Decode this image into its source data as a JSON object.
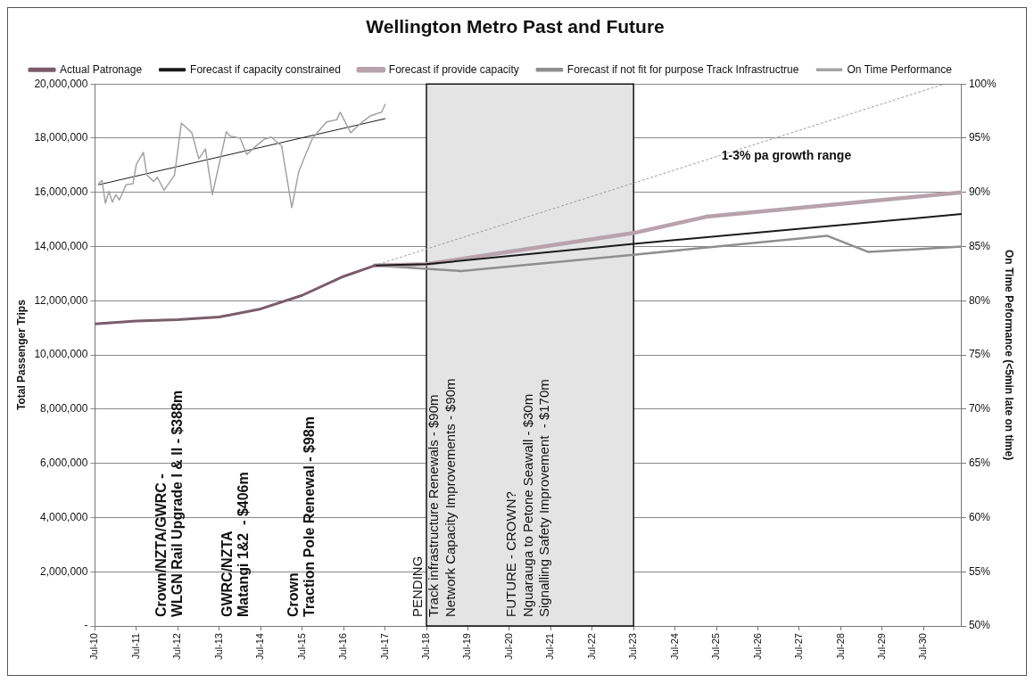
{
  "chart_data": {
    "type": "line",
    "title": "Wellington Metro Past and Future",
    "ylabel": "Total Passenger Trips",
    "y2label": "On Time Peformance (<5min late on time)",
    "legend": "top",
    "grid": "y",
    "marker": "none",
    "xlim": [
      "2010-07",
      "2031-06"
    ],
    "xticks": [
      {
        "value": "2010-07",
        "label": "Jul-10"
      },
      {
        "value": "2011-07",
        "label": "Jul-11"
      },
      {
        "value": "2012-07",
        "label": "Jul-12"
      },
      {
        "value": "2013-07",
        "label": "Jul-13"
      },
      {
        "value": "2014-07",
        "label": "Jul-14"
      },
      {
        "value": "2015-07",
        "label": "Jul-15"
      },
      {
        "value": "2016-07",
        "label": "Jul-16"
      },
      {
        "value": "2017-07",
        "label": "Jul-17"
      },
      {
        "value": "2018-07",
        "label": "Jul-18"
      },
      {
        "value": "2019-07",
        "label": "Jul-19"
      },
      {
        "value": "2020-07",
        "label": "Jul-20"
      },
      {
        "value": "2021-07",
        "label": "Jul-21"
      },
      {
        "value": "2022-07",
        "label": "Jul-22"
      },
      {
        "value": "2023-07",
        "label": "Jul-23"
      },
      {
        "value": "2024-07",
        "label": "Jul-24"
      },
      {
        "value": "2025-07",
        "label": "Jul-25"
      },
      {
        "value": "2026-07",
        "label": "Jul-26"
      },
      {
        "value": "2027-07",
        "label": "Jul-27"
      },
      {
        "value": "2028-07",
        "label": "Jul-28"
      },
      {
        "value": "2029-07",
        "label": "Jul-29"
      },
      {
        "value": "2030-07",
        "label": "Jul-30"
      }
    ],
    "ylim": [
      0,
      20000000
    ],
    "yticks": [
      {
        "value": 0,
        "label": "-"
      },
      {
        "value": 2000000,
        "label": "2,000,000"
      },
      {
        "value": 4000000,
        "label": "4,000,000"
      },
      {
        "value": 6000000,
        "label": "6,000,000"
      },
      {
        "value": 8000000,
        "label": "8,000,000"
      },
      {
        "value": 10000000,
        "label": "10,000,000"
      },
      {
        "value": 12000000,
        "label": "12,000,000"
      },
      {
        "value": 14000000,
        "label": "14,000,000"
      },
      {
        "value": 16000000,
        "label": "16,000,000"
      },
      {
        "value": 18000000,
        "label": "18,000,000"
      },
      {
        "value": 20000000,
        "label": "20,000,000"
      }
    ],
    "y2lim": [
      50,
      100
    ],
    "y2ticks": [
      {
        "value": 50,
        "label": "50%"
      },
      {
        "value": 55,
        "label": "55%"
      },
      {
        "value": 60,
        "label": "60%"
      },
      {
        "value": 65,
        "label": "65%"
      },
      {
        "value": 70,
        "label": "70%"
      },
      {
        "value": 75,
        "label": "75%"
      },
      {
        "value": 80,
        "label": "80%"
      },
      {
        "value": 85,
        "label": "85%"
      },
      {
        "value": 90,
        "label": "90%"
      },
      {
        "value": 95,
        "label": "95%"
      },
      {
        "value": 100,
        "label": "100%"
      }
    ],
    "bands": [
      {
        "axis": "x",
        "from": "2018-07",
        "to": "2023-07",
        "color": "#e4e4e4"
      }
    ],
    "series": [
      {
        "name": "Actual Patronage",
        "color": "#7a5c6a",
        "x": [
          "2010-07",
          "2011-07",
          "2012-07",
          "2013-07",
          "2014-07",
          "2015-07",
          "2016-07",
          "2017-04"
        ],
        "values": [
          11150000,
          11250000,
          11300000,
          11400000,
          11700000,
          12200000,
          12900000,
          13300000
        ]
      },
      {
        "name": "Forecast if capacity constrained",
        "color": "#1a1a1a",
        "x": [
          "2017-04",
          "2018-07",
          "2023-07",
          "2031-06"
        ],
        "values": [
          13300000,
          13350000,
          14100000,
          15200000
        ]
      },
      {
        "name": "Forecast if provide capacity",
        "color": "#b8a2ac",
        "x": [
          "2017-04",
          "2018-07",
          "2023-07",
          "2025-04",
          "2031-06"
        ],
        "values": [
          13300000,
          13350000,
          14500000,
          15100000,
          16000000
        ]
      },
      {
        "name": "Forecast if not fit for purpose Track Infrastructrue",
        "color": "#8f8f8f",
        "x": [
          "2017-04",
          "2019-05",
          "2023-07",
          "2028-03",
          "2029-03",
          "2031-06"
        ],
        "values": [
          13300000,
          13100000,
          13700000,
          14400000,
          13800000,
          14000000
        ]
      },
      {
        "name": "On Time Performance",
        "color": "#a3a3a3",
        "axis": "y2",
        "x": [
          "2010-08",
          "2010-09",
          "2010-10",
          "2010-11",
          "2010-12",
          "2011-01",
          "2011-02",
          "2011-04",
          "2011-06",
          "2011-07",
          "2011-09",
          "2011-10",
          "2011-12",
          "2012-01",
          "2012-03",
          "2012-06",
          "2012-08",
          "2012-11",
          "2013-01",
          "2013-03",
          "2013-05",
          "2013-09",
          "2013-10",
          "2014-01",
          "2014-03",
          "2014-05",
          "2014-08",
          "2014-10",
          "2015-01",
          "2015-04",
          "2015-06",
          "2015-08",
          "2015-10",
          "2016-02",
          "2016-05",
          "2016-06",
          "2016-09",
          "2016-12",
          "2017-03",
          "2017-06",
          "2017-07"
        ],
        "values": [
          90.8,
          91.1,
          89.0,
          90.1,
          89.1,
          89.8,
          89.3,
          90.7,
          90.8,
          92.6,
          93.7,
          91.6,
          91.0,
          91.4,
          90.2,
          91.6,
          96.4,
          95.5,
          93.1,
          94.0,
          89.8,
          95.6,
          95.2,
          95.0,
          93.5,
          94.1,
          94.9,
          95.1,
          94.3,
          88.6,
          91.9,
          93.5,
          95.0,
          96.5,
          96.7,
          97.4,
          95.5,
          96.4,
          97.1,
          97.4,
          98.1
        ]
      },
      {
        "color": "#1a1a1a",
        "axis": "y2",
        "x": [
          "2010-08",
          "2017-07"
        ],
        "values": [
          90.7,
          96.8
        ]
      },
      {
        "color": "#9a9a9a",
        "line_style": "dotted",
        "x": [
          "2017-04",
          "2031-01"
        ],
        "values": [
          13300000,
          20000000
        ]
      }
    ],
    "annotations": [
      "Crown/NZTA/GWRC -\nWLGN Rail Upgrade I & II - $388m",
      "GWRC/NZTA\nMatangi 1&2  - $406m",
      "Crown\nTraction Pole Renewal - $98m",
      "PENDING\nTrack infrastructure Renewals - $90m\nNetwork Capacity Improvements - $90m",
      "FUTURE - CROWN?\nNguarauga to Petone Seawall - $30m\nSignalling Safety Improvement  - $170m",
      "1-3% pa growth range"
    ]
  }
}
